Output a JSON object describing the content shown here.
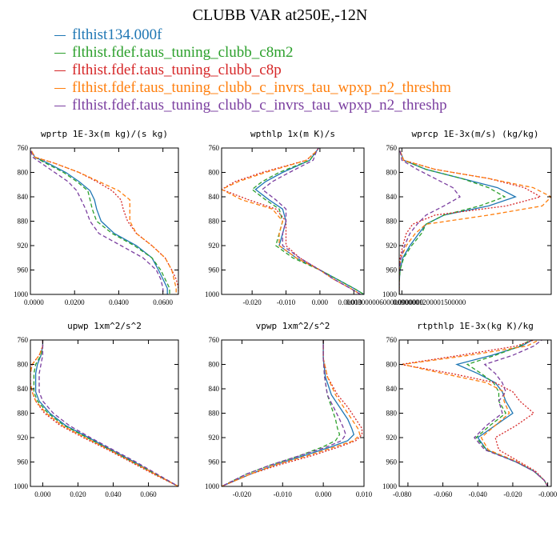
{
  "title": "CLUBB VAR at250E,-12N",
  "legend": [
    {
      "label": "flthist134.000f",
      "color": "#1f77b4"
    },
    {
      "label": "flthist.fdef.taus_tuning_clubb_c8m2",
      "color": "#2ca02c"
    },
    {
      "label": "flthist.fdef.taus_tuning_clubb_c8p",
      "color": "#d62728"
    },
    {
      "label": "flthist.fdef.taus_tuning_clubb_c_invrs_tau_wpxp_n2_threshm",
      "color": "#ff7f0e"
    },
    {
      "label": "flthist.fdef.taus_tuning_clubb_c_invrs_tau_wpxp_n2_threshp",
      "color": "#7b3fa0"
    }
  ],
  "chart_data": [
    {
      "type": "line",
      "title": "wprtp  1E-3x(m kg)/(s kg)",
      "xlim": [
        0,
        0.067
      ],
      "ylim": [
        760,
        1000
      ],
      "y_inverted": true,
      "xticks": [
        "0.0000",
        "0.0200",
        "0.0400",
        "0.0600"
      ],
      "xtick_values": [
        0,
        0.02,
        0.04,
        0.06
      ],
      "yticks": [
        "760",
        "800",
        "840",
        "880",
        "920",
        "960",
        "1000"
      ],
      "y": [
        765,
        775,
        785,
        800,
        815,
        830,
        845,
        860,
        880,
        900,
        920,
        940,
        960,
        975,
        990,
        1000
      ],
      "series": [
        {
          "values": [
            0.0005,
            0.002,
            0.008,
            0.016,
            0.022,
            0.027,
            0.029,
            0.03,
            0.032,
            0.038,
            0.048,
            0.055,
            0.058,
            0.06,
            0.062,
            0.062
          ],
          "dash": "solid"
        },
        {
          "values": [
            0.0005,
            0.002,
            0.007,
            0.015,
            0.021,
            0.026,
            0.027,
            0.028,
            0.03,
            0.037,
            0.047,
            0.055,
            0.059,
            0.061,
            0.063,
            0.063
          ],
          "dash": "dash"
        },
        {
          "values": [
            0.0005,
            0.002,
            0.011,
            0.022,
            0.03,
            0.037,
            0.041,
            0.042,
            0.044,
            0.048,
            0.055,
            0.061,
            0.064,
            0.066,
            0.067,
            0.067
          ],
          "dash": "dot"
        },
        {
          "values": [
            0.0005,
            0.002,
            0.011,
            0.022,
            0.031,
            0.04,
            0.045,
            0.045,
            0.045,
            0.048,
            0.055,
            0.061,
            0.064,
            0.065,
            0.066,
            0.066
          ],
          "dash": "dash"
        },
        {
          "values": [
            0.0003,
            0.001,
            0.005,
            0.011,
            0.017,
            0.021,
            0.023,
            0.025,
            0.027,
            0.031,
            0.041,
            0.051,
            0.057,
            0.059,
            0.06,
            0.06
          ],
          "dash": "dash"
        }
      ]
    },
    {
      "type": "line",
      "title": "wpthlp  1x(m K)/s",
      "xlim": [
        -0.029,
        0.013
      ],
      "ylim": [
        760,
        1000
      ],
      "y_inverted": true,
      "xticks": [
        "-0.020",
        "-0.010",
        "0.000",
        "0.010"
      ],
      "xtick_values": [
        -0.02,
        -0.01,
        0,
        0.01
      ],
      "yticks": [
        "760",
        "800",
        "840",
        "880",
        "920",
        "960",
        "1000"
      ],
      "y": [
        757,
        765,
        780,
        800,
        815,
        828,
        845,
        860,
        880,
        900,
        920,
        940,
        960,
        975,
        990,
        1000
      ],
      "series": [
        {
          "values": [
            0,
            -0.001,
            -0.003,
            -0.011,
            -0.016,
            -0.019,
            -0.015,
            -0.011,
            -0.01,
            -0.011,
            -0.012,
            -0.007,
            0.0,
            0.005,
            0.01,
            0.013
          ],
          "dash": "solid"
        },
        {
          "values": [
            0,
            -0.001,
            -0.003,
            -0.012,
            -0.017,
            -0.02,
            -0.016,
            -0.012,
            -0.011,
            -0.012,
            -0.013,
            -0.008,
            0.0,
            0.005,
            0.01,
            0.013
          ],
          "dash": "dash"
        },
        {
          "values": [
            0,
            -0.001,
            -0.004,
            -0.017,
            -0.025,
            -0.029,
            -0.021,
            -0.013,
            -0.01,
            -0.01,
            -0.01,
            -0.006,
            0.0,
            0.004,
            0.009,
            0.012
          ],
          "dash": "dot"
        },
        {
          "values": [
            0,
            -0.001,
            -0.004,
            -0.016,
            -0.024,
            -0.029,
            -0.023,
            -0.014,
            -0.011,
            -0.012,
            -0.012,
            -0.007,
            0.0,
            0.004,
            0.009,
            0.012
          ],
          "dash": "dash"
        },
        {
          "values": [
            0,
            -0.001,
            -0.002,
            -0.009,
            -0.014,
            -0.017,
            -0.013,
            -0.01,
            -0.01,
            -0.011,
            -0.011,
            -0.006,
            0.0,
            0.004,
            0.009,
            0.012
          ],
          "dash": "dash"
        }
      ]
    },
    {
      "type": "line",
      "title": "wprcp  1E-3x(m/s) (kg/kg)",
      "xlim": [
        0,
        0.0017
      ],
      "ylim": [
        760,
        1000
      ],
      "y_inverted": true,
      "xticks": [
        "0.0000000",
        "0.0000300000600000900001200001500000"
      ],
      "xtick_values": [
        0,
        3e-05
      ],
      "yticks": [
        "760",
        "800",
        "840",
        "880",
        "920",
        "960",
        "1000"
      ],
      "y": [
        765,
        780,
        795,
        810,
        825,
        840,
        855,
        870,
        885,
        900,
        920,
        940,
        960,
        980,
        1000
      ],
      "series": [
        {
          "values": [
            1e-05,
            5e-05,
            0.0003,
            0.0007,
            0.0011,
            0.0013,
            0.001,
            0.0005,
            0.0003,
            0.00022,
            0.00012,
            4e-05,
            1e-05,
            0,
            0
          ],
          "dash": "solid"
        },
        {
          "values": [
            1e-05,
            5e-05,
            0.0003,
            0.0007,
            0.001,
            0.00118,
            0.0009,
            0.0005,
            0.0003,
            0.00025,
            0.00014,
            5e-05,
            1e-05,
            0,
            0
          ],
          "dash": "dash"
        },
        {
          "values": [
            1e-05,
            5e-05,
            0.0004,
            0.001,
            0.0014,
            0.00158,
            0.0012,
            0.0004,
            0.00015,
            8e-05,
            4e-05,
            1e-05,
            0,
            0,
            0
          ],
          "dash": "dot"
        },
        {
          "values": [
            1e-05,
            5e-05,
            0.0004,
            0.001,
            0.0015,
            0.0017,
            0.0016,
            0.001,
            0.0003,
            0.00018,
            8e-05,
            2e-05,
            0,
            0,
            0
          ],
          "dash": "dash"
        },
        {
          "values": [
            1e-05,
            3e-05,
            0.0002,
            0.0004,
            0.0006,
            0.00068,
            0.0005,
            0.0003,
            0.0002,
            0.00012,
            6e-05,
            2e-05,
            0,
            0,
            0
          ],
          "dash": "dash"
        }
      ]
    },
    {
      "type": "line",
      "title": "upwp  1xm^2/s^2",
      "xlim": [
        -0.007,
        0.077
      ],
      "ylim": [
        760,
        1000
      ],
      "y_inverted": true,
      "xticks": [
        "0.000",
        "0.020",
        "0.040",
        "0.060"
      ],
      "xtick_values": [
        0,
        0.02,
        0.04,
        0.06
      ],
      "yticks": [
        "760",
        "800",
        "840",
        "880",
        "920",
        "960",
        "1000"
      ],
      "y": [
        757,
        770,
        785,
        800,
        815,
        830,
        845,
        860,
        880,
        900,
        920,
        940,
        960,
        980,
        1000
      ],
      "series": [
        {
          "values": [
            0.0,
            0.0,
            -0.001,
            -0.003,
            -0.004,
            -0.004,
            -0.004,
            -0.002,
            0.004,
            0.013,
            0.026,
            0.039,
            0.052,
            0.064,
            0.077
          ],
          "dash": "solid"
        },
        {
          "values": [
            0.0,
            0.0,
            -0.001,
            -0.004,
            -0.005,
            -0.005,
            -0.005,
            -0.003,
            0.003,
            0.012,
            0.025,
            0.038,
            0.051,
            0.064,
            0.077
          ],
          "dash": "dash"
        },
        {
          "values": [
            0.0,
            0.0,
            -0.002,
            -0.006,
            -0.007,
            -0.007,
            -0.006,
            -0.004,
            0.001,
            0.01,
            0.023,
            0.037,
            0.05,
            0.063,
            0.077
          ],
          "dash": "dot"
        },
        {
          "values": [
            0.0,
            0.0,
            -0.002,
            -0.006,
            -0.007,
            -0.007,
            -0.006,
            -0.004,
            0.002,
            0.011,
            0.024,
            0.038,
            0.051,
            0.064,
            0.077
          ],
          "dash": "dash"
        },
        {
          "values": [
            0.0,
            0.0,
            0.0,
            -0.001,
            -0.002,
            -0.002,
            -0.002,
            0.0,
            0.006,
            0.015,
            0.027,
            0.04,
            0.053,
            0.065,
            0.077
          ],
          "dash": "dash"
        }
      ]
    },
    {
      "type": "line",
      "title": "vpwp  1xm^2/s^2",
      "xlim": [
        -0.025,
        0.01
      ],
      "ylim": [
        760,
        1000
      ],
      "y_inverted": true,
      "xticks": [
        "-0.020",
        "-0.010",
        "0.000",
        "0.010"
      ],
      "xtick_values": [
        -0.02,
        -0.01,
        0,
        0.01
      ],
      "yticks": [
        "760",
        "800",
        "840",
        "880",
        "920",
        "960",
        "1000"
      ],
      "y": [
        757,
        790,
        820,
        850,
        870,
        890,
        905,
        915,
        925,
        935,
        950,
        965,
        980,
        1000
      ],
      "series": [
        {
          "values": [
            0.0,
            0.0,
            0.0005,
            0.002,
            0.004,
            0.006,
            0.007,
            0.0075,
            0.006,
            0.002,
            -0.005,
            -0.012,
            -0.018,
            -0.025
          ],
          "dash": "solid"
        },
        {
          "values": [
            0.0,
            0.0,
            0.0003,
            0.001,
            0.002,
            0.003,
            0.0035,
            0.004,
            0.003,
            0.0,
            -0.006,
            -0.013,
            -0.019,
            -0.025
          ],
          "dash": "dash"
        },
        {
          "values": [
            0.0,
            0.0,
            0.001,
            0.0035,
            0.006,
            0.008,
            0.0095,
            0.0095,
            0.008,
            0.004,
            -0.003,
            -0.011,
            -0.018,
            -0.025
          ],
          "dash": "dot"
        },
        {
          "values": [
            0.0,
            0.0,
            0.001,
            0.003,
            0.005,
            0.007,
            0.0085,
            0.009,
            0.0075,
            0.003,
            -0.004,
            -0.012,
            -0.018,
            -0.025
          ],
          "dash": "dash"
        },
        {
          "values": [
            0.0,
            0.0,
            0.0003,
            0.001,
            0.0025,
            0.004,
            0.005,
            0.0055,
            0.0045,
            0.001,
            -0.006,
            -0.013,
            -0.019,
            -0.025
          ],
          "dash": "dash"
        }
      ]
    },
    {
      "type": "line",
      "title": "rtpthlp  1E-3x(kg K)/kg",
      "xlim": [
        -0.085,
        0.002
      ],
      "ylim": [
        760,
        1000
      ],
      "y_inverted": true,
      "xticks": [
        "-0.080",
        "-0.060",
        "-0.040",
        "-0.020",
        "-0.000"
      ],
      "xtick_values": [
        -0.08,
        -0.06,
        -0.04,
        -0.02,
        0
      ],
      "yticks": [
        "760",
        "800",
        "840",
        "880",
        "920",
        "960",
        "1000"
      ],
      "y": [
        757,
        770,
        785,
        800,
        815,
        830,
        845,
        860,
        880,
        900,
        920,
        940,
        960,
        975,
        990,
        1000
      ],
      "series": [
        {
          "values": [
            -0.007,
            -0.015,
            -0.032,
            -0.052,
            -0.04,
            -0.03,
            -0.026,
            -0.024,
            -0.02,
            -0.03,
            -0.04,
            -0.035,
            -0.018,
            -0.008,
            -0.002,
            0.0
          ],
          "dash": "solid"
        },
        {
          "values": [
            -0.008,
            -0.016,
            -0.03,
            -0.046,
            -0.038,
            -0.031,
            -0.028,
            -0.028,
            -0.024,
            -0.033,
            -0.041,
            -0.035,
            -0.018,
            -0.008,
            -0.002,
            0.0
          ],
          "dash": "dash"
        },
        {
          "values": [
            -0.005,
            -0.018,
            -0.05,
            -0.084,
            -0.055,
            -0.03,
            -0.02,
            -0.016,
            -0.008,
            -0.018,
            -0.03,
            -0.028,
            -0.016,
            -0.007,
            -0.002,
            0.0
          ],
          "dash": "dot"
        },
        {
          "values": [
            -0.003,
            -0.012,
            -0.045,
            -0.083,
            -0.06,
            -0.035,
            -0.025,
            -0.025,
            -0.022,
            -0.03,
            -0.038,
            -0.034,
            -0.017,
            -0.008,
            -0.002,
            0.0
          ],
          "dash": "dash"
        },
        {
          "values": [
            -0.002,
            -0.008,
            -0.02,
            -0.036,
            -0.03,
            -0.026,
            -0.024,
            -0.028,
            -0.026,
            -0.035,
            -0.042,
            -0.036,
            -0.018,
            -0.008,
            -0.002,
            0.0
          ],
          "dash": "dash"
        }
      ]
    }
  ]
}
